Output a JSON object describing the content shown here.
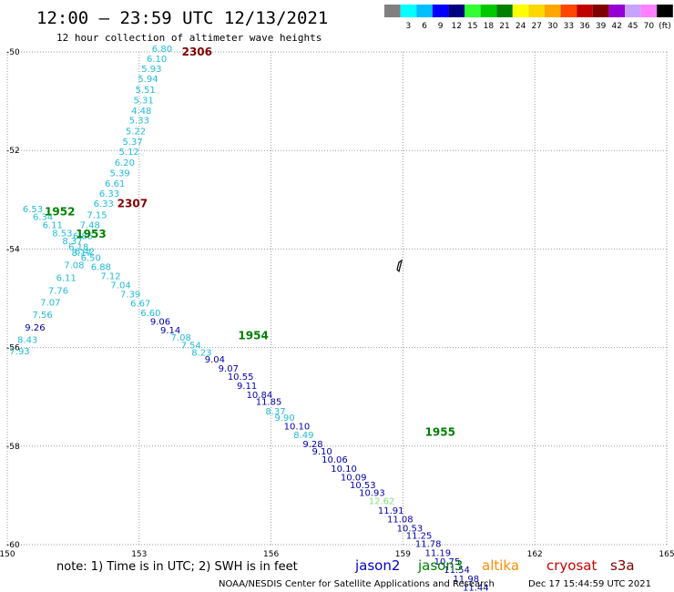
{
  "header": {
    "title": "12:00 – 23:59 UTC 12/13/2021",
    "subtitle": "12 hour collection of altimeter wave heights"
  },
  "scale": {
    "bins": [
      {
        "color": "#808080",
        "label": ""
      },
      {
        "color": "#00ffff",
        "label": "3"
      },
      {
        "color": "#00bfff",
        "label": "6"
      },
      {
        "color": "#0000ff",
        "label": "9"
      },
      {
        "color": "#000080",
        "label": "12"
      },
      {
        "color": "#32ff32",
        "label": "15"
      },
      {
        "color": "#00c800",
        "label": "18"
      },
      {
        "color": "#008000",
        "label": "21"
      },
      {
        "color": "#ffff00",
        "label": "24"
      },
      {
        "color": "#ffd700",
        "label": "27"
      },
      {
        "color": "#ffa500",
        "label": "30"
      },
      {
        "color": "#ff4500",
        "label": "33"
      },
      {
        "color": "#c00000",
        "label": "36"
      },
      {
        "color": "#800000",
        "label": "39"
      },
      {
        "color": "#9400d3",
        "label": "42"
      },
      {
        "color": "#c8a2ff",
        "label": "45"
      },
      {
        "color": "#ff80ff",
        "label": "70"
      },
      {
        "color": "#000000",
        "label": "(ft)"
      }
    ]
  },
  "footer": {
    "note": "note:  1) Time is in UTC; 2) SWH is in feet",
    "satellites": [
      {
        "name": "jason2",
        "color": "#0000cc"
      },
      {
        "name": "jason3",
        "color": "#008000"
      },
      {
        "name": "altika",
        "color": "#ff8c00"
      },
      {
        "name": "cryosat",
        "color": "#d00000"
      },
      {
        "name": "s3a",
        "color": "#800000"
      }
    ],
    "credit": "NOAA/NESDIS Center for Satellite Applications and Research",
    "timestamp": "Dec 17 15:44:59 UTC 2021"
  },
  "chart_data": {
    "type": "scatter",
    "xlim": [
      150,
      165
    ],
    "ylim": [
      -50,
      -60
    ],
    "x_ticks": [
      150,
      153,
      156,
      159,
      162,
      165
    ],
    "y_ticks": [
      -50,
      -52,
      -54,
      -56,
      -58,
      -60
    ],
    "grid": true,
    "colors": {
      "c_light": "#20bcd8",
      "c_dark": "#0000aa",
      "c_green": "#80e080",
      "c_s3a": "#800000",
      "c_j3": "#008000"
    },
    "pass_labels": [
      {
        "text": "2306",
        "lon": 153.97,
        "lat": -50.0,
        "color": "c_s3a"
      },
      {
        "text": "2307",
        "lon": 152.5,
        "lat": -53.08,
        "color": "c_s3a"
      },
      {
        "text": "1952",
        "lon": 150.85,
        "lat": -53.24,
        "color": "c_j3"
      },
      {
        "text": "1953",
        "lon": 151.56,
        "lat": -53.7,
        "color": "c_j3"
      },
      {
        "text": "1954",
        "lon": 155.25,
        "lat": -55.76,
        "color": "c_j3"
      },
      {
        "text": "1955",
        "lon": 159.5,
        "lat": -57.72,
        "color": "c_j3"
      }
    ],
    "points": [
      {
        "lon": 153.29,
        "lat": -50.0,
        "v": "6.80",
        "c": "c_light"
      },
      {
        "lon": 153.17,
        "lat": -50.2,
        "v": "6.10",
        "c": "c_light"
      },
      {
        "lon": 153.05,
        "lat": -50.41,
        "v": "5.93",
        "c": "c_light"
      },
      {
        "lon": 152.97,
        "lat": -50.61,
        "v": "5.94",
        "c": "c_light"
      },
      {
        "lon": 152.91,
        "lat": -50.83,
        "v": "5.51",
        "c": "c_light"
      },
      {
        "lon": 152.87,
        "lat": -51.04,
        "v": "5.31",
        "c": "c_light"
      },
      {
        "lon": 152.82,
        "lat": -51.26,
        "v": "4.48",
        "c": "c_light"
      },
      {
        "lon": 152.77,
        "lat": -51.45,
        "v": "5.33",
        "c": "c_light"
      },
      {
        "lon": 152.69,
        "lat": -51.67,
        "v": "5.22",
        "c": "c_light"
      },
      {
        "lon": 152.62,
        "lat": -51.89,
        "v": "5.37",
        "c": "c_light"
      },
      {
        "lon": 152.54,
        "lat": -52.09,
        "v": "5.12",
        "c": "c_light"
      },
      {
        "lon": 152.44,
        "lat": -52.31,
        "v": "6.20",
        "c": "c_light"
      },
      {
        "lon": 152.33,
        "lat": -52.52,
        "v": "5.39",
        "c": "c_light"
      },
      {
        "lon": 152.22,
        "lat": -52.74,
        "v": "6.61",
        "c": "c_light"
      },
      {
        "lon": 152.09,
        "lat": -52.94,
        "v": "6.33",
        "c": "c_light"
      },
      {
        "lon": 151.96,
        "lat": -53.14,
        "v": "6.33",
        "c": "c_light"
      },
      {
        "lon": 151.81,
        "lat": -53.37,
        "v": "7.15",
        "c": "c_light"
      },
      {
        "lon": 151.65,
        "lat": -53.58,
        "v": "7.48",
        "c": "c_light"
      },
      {
        "lon": 151.49,
        "lat": -53.8,
        "v": "6.86",
        "c": "c_light"
      },
      {
        "lon": 150.35,
        "lat": -53.25,
        "v": "6.53",
        "c": "c_light"
      },
      {
        "lon": 150.58,
        "lat": -53.41,
        "v": "6.34",
        "c": "c_light"
      },
      {
        "lon": 150.8,
        "lat": -53.58,
        "v": "6.11",
        "c": "c_light"
      },
      {
        "lon": 151.02,
        "lat": -53.74,
        "v": "8.53",
        "c": "c_light"
      },
      {
        "lon": 151.25,
        "lat": -53.9,
        "v": "8.37",
        "c": "c_light"
      },
      {
        "lon": 151.39,
        "lat": -54.02,
        "v": "6.18",
        "c": "c_light"
      },
      {
        "lon": 151.53,
        "lat": -54.11,
        "v": "6.42",
        "c": "c_light"
      },
      {
        "lon": 151.67,
        "lat": -54.24,
        "v": "6.50",
        "c": "c_light"
      },
      {
        "lon": 151.9,
        "lat": -54.43,
        "v": "6.88",
        "c": "c_light"
      },
      {
        "lon": 152.12,
        "lat": -54.61,
        "v": "7.12",
        "c": "c_light"
      },
      {
        "lon": 152.35,
        "lat": -54.8,
        "v": "7.04",
        "c": "c_light"
      },
      {
        "lon": 152.57,
        "lat": -54.98,
        "v": "7.39",
        "c": "c_light"
      },
      {
        "lon": 152.8,
        "lat": -55.17,
        "v": "6.67",
        "c": "c_light"
      },
      {
        "lon": 153.03,
        "lat": -55.36,
        "v": "6.60",
        "c": "c_light"
      },
      {
        "lon": 151.46,
        "lat": -54.14,
        "v": "8.17",
        "c": "c_light"
      },
      {
        "lon": 151.29,
        "lat": -54.39,
        "v": "7.08",
        "c": "c_light"
      },
      {
        "lon": 151.11,
        "lat": -54.65,
        "v": "6.11",
        "c": "c_light"
      },
      {
        "lon": 150.93,
        "lat": -54.91,
        "v": "7.76",
        "c": "c_light"
      },
      {
        "lon": 150.75,
        "lat": -55.15,
        "v": "7.07",
        "c": "c_light"
      },
      {
        "lon": 150.57,
        "lat": -55.4,
        "v": "7.56",
        "c": "c_light"
      },
      {
        "lon": 150.4,
        "lat": -55.66,
        "v": "9.26",
        "c": "c_dark"
      },
      {
        "lon": 150.23,
        "lat": -55.91,
        "v": "8.43",
        "c": "c_light"
      },
      {
        "lon": 150.05,
        "lat": -56.14,
        "v": "7.93",
        "c": "c_light"
      },
      {
        "lon": 153.25,
        "lat": -55.54,
        "v": "9.06",
        "c": "c_dark"
      },
      {
        "lon": 153.48,
        "lat": -55.71,
        "v": "9.14",
        "c": "c_dark"
      },
      {
        "lon": 153.72,
        "lat": -55.86,
        "v": "7.08",
        "c": "c_light"
      },
      {
        "lon": 153.95,
        "lat": -56.02,
        "v": "7.54",
        "c": "c_light"
      },
      {
        "lon": 154.19,
        "lat": -56.16,
        "v": "8.23",
        "c": "c_light"
      },
      {
        "lon": 154.49,
        "lat": -56.3,
        "v": "9.04",
        "c": "c_dark"
      },
      {
        "lon": 154.8,
        "lat": -56.49,
        "v": "9.07",
        "c": "c_dark"
      },
      {
        "lon": 155.01,
        "lat": -56.65,
        "v": "10.55",
        "c": "c_dark"
      },
      {
        "lon": 155.22,
        "lat": -56.84,
        "v": "9.11",
        "c": "c_dark"
      },
      {
        "lon": 155.44,
        "lat": -57.02,
        "v": "10.84",
        "c": "c_dark"
      },
      {
        "lon": 155.65,
        "lat": -57.16,
        "v": "11.85",
        "c": "c_dark"
      },
      {
        "lon": 155.87,
        "lat": -57.36,
        "v": "8.37",
        "c": "c_light"
      },
      {
        "lon": 156.08,
        "lat": -57.49,
        "v": "9.90",
        "c": "c_light"
      },
      {
        "lon": 156.29,
        "lat": -57.66,
        "v": "10.10",
        "c": "c_dark"
      },
      {
        "lon": 156.51,
        "lat": -57.84,
        "v": "8.49",
        "c": "c_light"
      },
      {
        "lon": 156.72,
        "lat": -58.02,
        "v": "9.28",
        "c": "c_dark"
      },
      {
        "lon": 156.93,
        "lat": -58.17,
        "v": "9.10",
        "c": "c_dark"
      },
      {
        "lon": 157.15,
        "lat": -58.34,
        "v": "10.06",
        "c": "c_dark"
      },
      {
        "lon": 157.36,
        "lat": -58.52,
        "v": "10.10",
        "c": "c_dark"
      },
      {
        "lon": 157.58,
        "lat": -58.7,
        "v": "10.09",
        "c": "c_dark"
      },
      {
        "lon": 157.79,
        "lat": -58.85,
        "v": "10.53",
        "c": "c_dark"
      },
      {
        "lon": 158.0,
        "lat": -59.01,
        "v": "10.93",
        "c": "c_dark"
      },
      {
        "lon": 158.22,
        "lat": -59.18,
        "v": "12.62",
        "c": "c_green"
      },
      {
        "lon": 158.43,
        "lat": -59.37,
        "v": "11.91",
        "c": "c_dark"
      },
      {
        "lon": 158.64,
        "lat": -59.55,
        "v": "11.08",
        "c": "c_dark"
      },
      {
        "lon": 158.86,
        "lat": -59.73,
        "v": "10.53",
        "c": "c_dark"
      },
      {
        "lon": 159.07,
        "lat": -59.88,
        "v": "11.25",
        "c": "c_dark"
      },
      {
        "lon": 159.28,
        "lat": -60.05,
        "v": "11.78",
        "c": "c_dark"
      },
      {
        "lon": 159.5,
        "lat": -60.23,
        "v": "11.19",
        "c": "c_dark"
      },
      {
        "lon": 159.71,
        "lat": -60.41,
        "v": "10.75",
        "c": "c_dark"
      },
      {
        "lon": 159.93,
        "lat": -60.57,
        "v": "11.54",
        "c": "c_dark"
      },
      {
        "lon": 160.14,
        "lat": -60.76,
        "v": "11.98",
        "c": "c_dark"
      },
      {
        "lon": 160.36,
        "lat": -60.93,
        "v": "11.44",
        "c": "c_dark"
      }
    ]
  }
}
